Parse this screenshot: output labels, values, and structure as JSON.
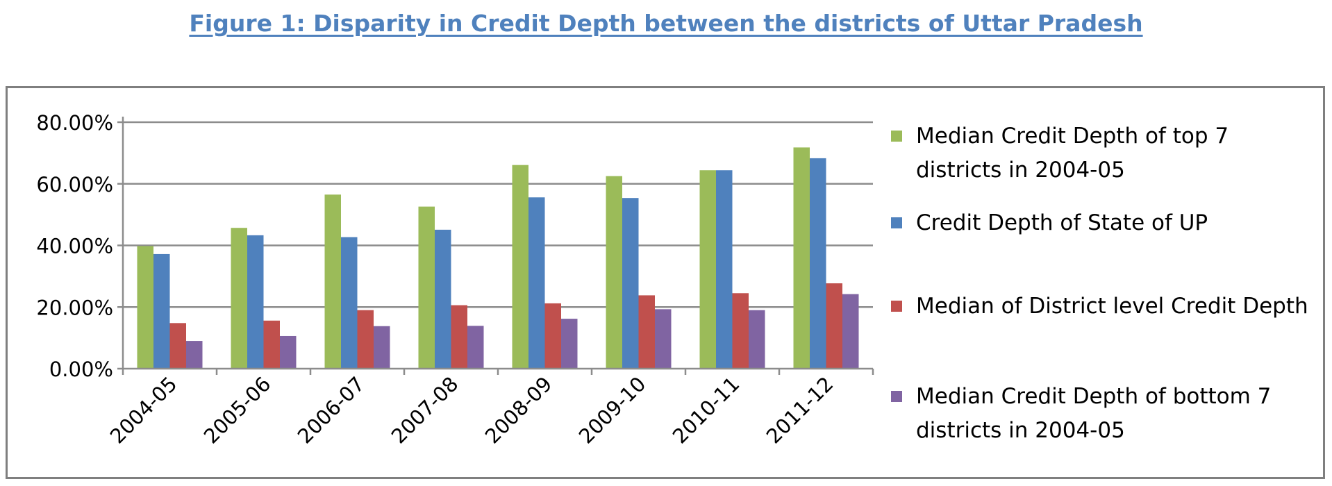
{
  "title": "Figure 1: Disparity in Credit Depth between the districts of Uttar Pradesh",
  "chart_data": {
    "type": "bar",
    "categories": [
      "2004-05",
      "2005-06",
      "2006-07",
      "2007-08",
      "2008-09",
      "2009-10",
      "2010-11",
      "2011-12"
    ],
    "series": [
      {
        "name": "Median Credit Depth of top 7 districts  in 2004-05",
        "color": "#9bbb59",
        "values": [
          39.8,
          45.7,
          56.5,
          52.6,
          66.1,
          62.5,
          64.4,
          71.8
        ]
      },
      {
        "name": "Credit Depth of State of UP",
        "color": "#4f81bd",
        "values": [
          37.2,
          43.3,
          42.7,
          45.1,
          55.6,
          55.4,
          64.4,
          68.3
        ]
      },
      {
        "name": "Median of District level Credit Depth",
        "color": "#c0504d",
        "values": [
          14.8,
          15.6,
          19.0,
          20.6,
          21.2,
          23.8,
          24.5,
          27.7
        ]
      },
      {
        "name": "Median Credit Depth of bottom 7 districts in 2004-05",
        "color": "#8064a2",
        "values": [
          9.0,
          10.6,
          13.8,
          13.9,
          16.2,
          19.3,
          19.0,
          24.2
        ]
      }
    ],
    "y_ticks": [
      "0.00%",
      "20.00%",
      "40.00%",
      "60.00%",
      "80.00%"
    ],
    "ylim": [
      0,
      80
    ],
    "grid": true,
    "legend": "right"
  }
}
